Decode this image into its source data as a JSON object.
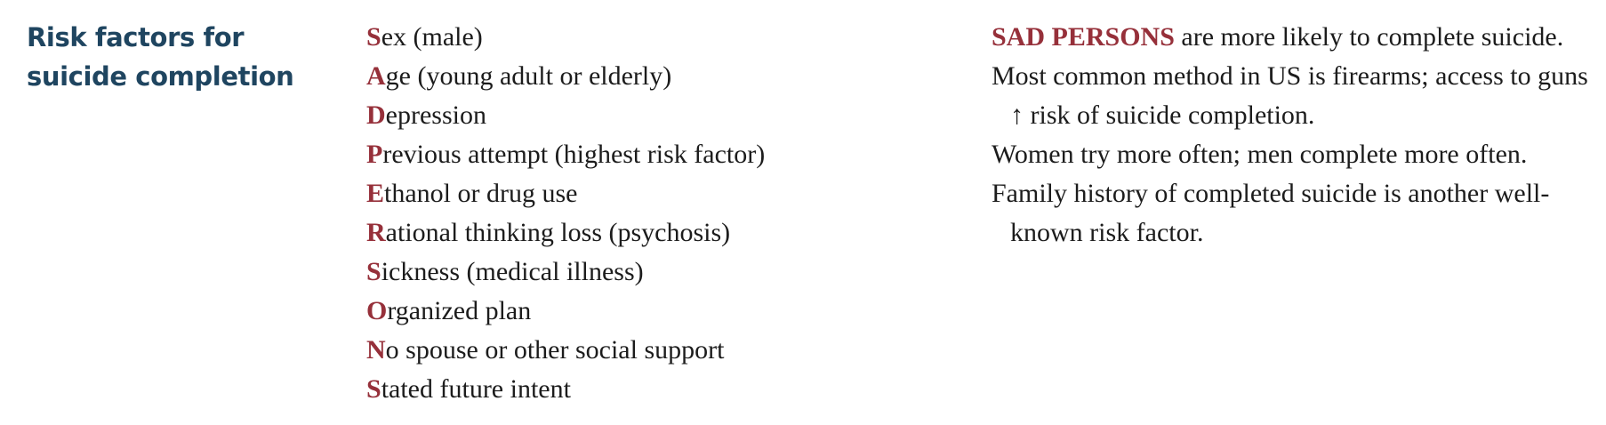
{
  "section": {
    "title": "Risk factors for suicide completion"
  },
  "mnemonic": {
    "items": [
      {
        "letter": "S",
        "rest": "ex (male)"
      },
      {
        "letter": "A",
        "rest": "ge (young adult or elderly)"
      },
      {
        "letter": "D",
        "rest": "epression"
      },
      {
        "letter": "P",
        "rest": "revious attempt (highest risk factor)"
      },
      {
        "letter": "E",
        "rest": "thanol or drug use"
      },
      {
        "letter": "R",
        "rest": "ational thinking loss (psychosis)"
      },
      {
        "letter": "S",
        "rest": "ickness (medical illness)"
      },
      {
        "letter": "O",
        "rest": "rganized plan"
      },
      {
        "letter": "N",
        "rest": "o spouse or other social support"
      },
      {
        "letter": "S",
        "rest": "tated future intent"
      }
    ]
  },
  "notes": {
    "n1_accent": "SAD PERSONS",
    "n1_text": " are more likely to complete suicide.",
    "n2": "Most common method in US is firearms; access to guns ↑ risk of suicide completion.",
    "n3": "Women try more often; men complete more often.",
    "n4": "Family history of completed suicide is another well-known risk factor."
  },
  "colors": {
    "heading": "#1f4560",
    "accent": "#96303a",
    "text": "#1c1c1c"
  }
}
